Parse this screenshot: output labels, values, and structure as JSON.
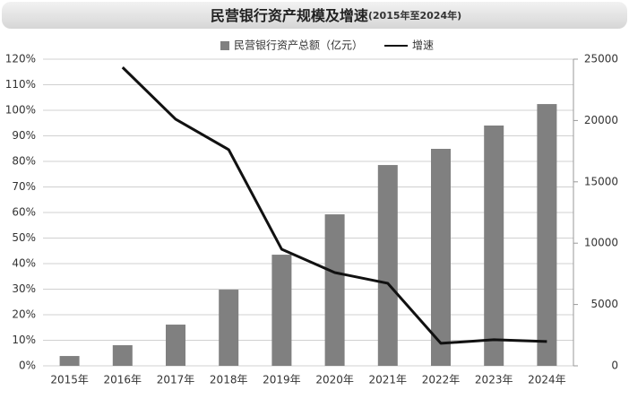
{
  "chart_data": {
    "type": "combo",
    "title": "民营银行资产规模及增速",
    "subtitle": "(2015年至2024年)",
    "categories": [
      "2015年",
      "2016年",
      "2017年",
      "2018年",
      "2019年",
      "2020年",
      "2021年",
      "2022年",
      "2023年",
      "2024年"
    ],
    "series": [
      {
        "name": "民营银行资产总额（亿元）",
        "type": "bar",
        "color": "#808080",
        "axis": "y2",
        "values": [
          800,
          1680,
          3360,
          6210,
          9060,
          12350,
          16370,
          17690,
          19590,
          21340
        ]
      },
      {
        "name": "增速",
        "type": "line",
        "color": "#111111",
        "axis": "y",
        "values": [
          null,
          116.8,
          96.5,
          84.6,
          45.6,
          36.5,
          32.3,
          8.8,
          10.2,
          9.5
        ]
      }
    ],
    "ylim": [
      0,
      120
    ],
    "yticks": [
      {
        "value": 0,
        "label": "0%"
      },
      {
        "value": 10,
        "label": "10%"
      },
      {
        "value": 20,
        "label": "20%"
      },
      {
        "value": 30,
        "label": "30%"
      },
      {
        "value": 40,
        "label": "40%"
      },
      {
        "value": 50,
        "label": "50%"
      },
      {
        "value": 60,
        "label": "60%"
      },
      {
        "value": 70,
        "label": "70%"
      },
      {
        "value": 80,
        "label": "80%"
      },
      {
        "value": 90,
        "label": "90%"
      },
      {
        "value": 100,
        "label": "100%"
      },
      {
        "value": 110,
        "label": "110%"
      },
      {
        "value": 120,
        "label": "120%"
      }
    ],
    "y2lim": [
      0,
      25000
    ],
    "y2ticks": [
      0,
      5000,
      10000,
      15000,
      20000,
      25000
    ],
    "grid": true,
    "legend": "top"
  }
}
